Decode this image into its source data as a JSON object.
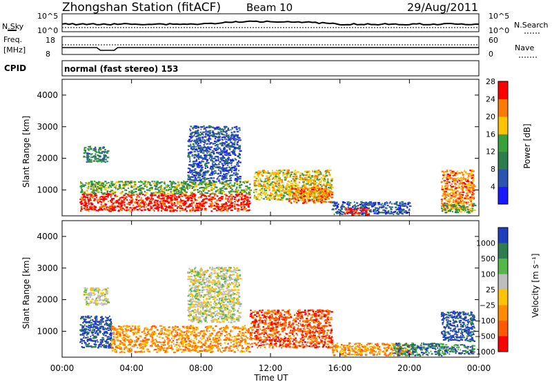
{
  "header": {
    "station": "Zhongshan Station (fitACF)",
    "beam": "Beam 10",
    "date": "29/Aug/2011",
    "cpid_label": "CPID",
    "cpid_text": "normal (fast stereo) 153"
  },
  "strips": {
    "nsky_label": "N.Sky",
    "nsearch_label": "N.Search",
    "freq_label_1": "Freq.",
    "freq_label_2": "[MHz]",
    "nave_label": "Nave",
    "nsky_ticks": [
      "10^5",
      "10^0"
    ],
    "freq_ticks": [
      "18",
      "8"
    ],
    "nave_ticks": [
      "60",
      "0"
    ]
  },
  "chart_data": [
    {
      "type": "heatmap",
      "name": "power",
      "ylabel": "Slant Range [km]",
      "xlabel": "Time UT",
      "y_ticks": [
        "1000",
        "2000",
        "3000",
        "4000"
      ],
      "ylim": [
        180,
        4500
      ],
      "x_ticks": [
        "00:00",
        "04:00",
        "08:00",
        "12:00",
        "16:00",
        "20:00",
        "00:00"
      ],
      "xlim": [
        0,
        24
      ],
      "colorbar_label": "Power [dB]",
      "colorbar_ticks": [
        "4",
        "8",
        "12",
        "16",
        "20",
        "24",
        "28"
      ],
      "colorbar_colors": [
        "#1a1aff",
        "#2a55b0",
        "#2e7d4e",
        "#3aa03a",
        "#ffc400",
        "#ff7a00",
        "#ff0000"
      ],
      "regions": [
        {
          "t": [
            1.0,
            10.8
          ],
          "r": [
            350,
            900
          ],
          "level": 6
        },
        {
          "t": [
            1.0,
            10.8
          ],
          "r": [
            900,
            1300
          ],
          "level": 3
        },
        {
          "t": [
            1.2,
            2.6
          ],
          "r": [
            1900,
            2400
          ],
          "level": 2
        },
        {
          "t": [
            7.2,
            10.2
          ],
          "r": [
            1300,
            3050
          ],
          "level": 1
        },
        {
          "t": [
            11.0,
            15.5
          ],
          "r": [
            700,
            1650
          ],
          "level": 4
        },
        {
          "t": [
            13.0,
            15.5
          ],
          "r": [
            600,
            1100
          ],
          "level": 5
        },
        {
          "t": [
            15.5,
            20.0
          ],
          "r": [
            250,
            650
          ],
          "level": 1
        },
        {
          "t": [
            16.2,
            17.6
          ],
          "r": [
            230,
            450
          ],
          "level": 6
        },
        {
          "t": [
            21.8,
            23.7
          ],
          "r": [
            400,
            1650
          ],
          "level": 5
        },
        {
          "t": [
            21.8,
            23.7
          ],
          "r": [
            300,
            600
          ],
          "level": 3
        }
      ]
    },
    {
      "type": "heatmap",
      "name": "velocity",
      "ylabel": "Slant Range [km]",
      "xlabel": "Time UT",
      "y_ticks": [
        "1000",
        "2000",
        "3000",
        "4000"
      ],
      "ylim": [
        180,
        4500
      ],
      "x_ticks": [
        "00:00",
        "04:00",
        "08:00",
        "12:00",
        "16:00",
        "20:00",
        "00:00"
      ],
      "xlim": [
        0,
        24
      ],
      "colorbar_label": "Velocity [m s⁻¹]",
      "colorbar_ticks": [
        "1000",
        "500",
        "100",
        "25",
        "−25",
        "−100",
        "−500",
        "−1000"
      ],
      "colorbar_colors": [
        "#1f3fbf",
        "#2e7d4e",
        "#55b64a",
        "#bdbdbd",
        "#ffc400",
        "#ff8c00",
        "#ff5a00",
        "#ff0000"
      ],
      "regions": [
        {
          "t": [
            1.0,
            2.8
          ],
          "r": [
            500,
            1500
          ],
          "level": 0
        },
        {
          "t": [
            2.8,
            10.8
          ],
          "r": [
            350,
            1200
          ],
          "level": 5
        },
        {
          "t": [
            1.2,
            2.6
          ],
          "r": [
            1850,
            2400
          ],
          "level": 3
        },
        {
          "t": [
            7.2,
            10.2
          ],
          "r": [
            1300,
            3050
          ],
          "level": 3
        },
        {
          "t": [
            10.8,
            15.5
          ],
          "r": [
            500,
            1700
          ],
          "level": 6
        },
        {
          "t": [
            15.5,
            20.0
          ],
          "r": [
            250,
            650
          ],
          "level": 5
        },
        {
          "t": [
            19.0,
            22.0
          ],
          "r": [
            250,
            650
          ],
          "level": 1
        },
        {
          "t": [
            21.8,
            23.7
          ],
          "r": [
            700,
            1650
          ],
          "level": 0
        },
        {
          "t": [
            21.8,
            23.7
          ],
          "r": [
            300,
            600
          ],
          "level": 1
        }
      ]
    }
  ]
}
